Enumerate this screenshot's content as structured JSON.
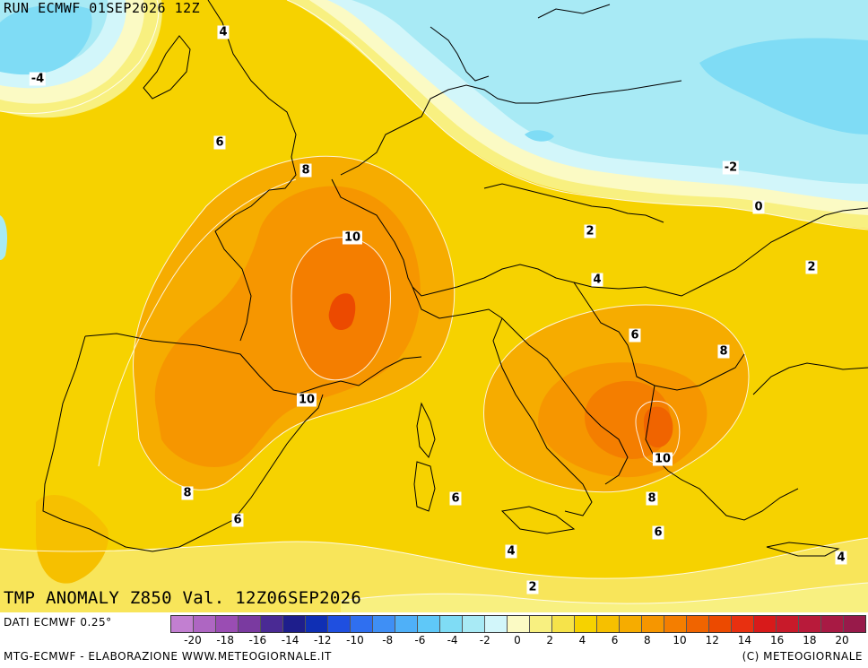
{
  "header": {
    "run_title": "RUN ECMWF 01SEP2026 12Z",
    "anomaly_title": "TMP ANOMALY Z850 Val. 12Z06SEP2026"
  },
  "contour_labels": [
    {
      "text": "4"
    },
    {
      "text": "-4"
    },
    {
      "text": "6"
    },
    {
      "text": "8"
    },
    {
      "text": "10"
    },
    {
      "text": "10"
    },
    {
      "text": "8"
    },
    {
      "text": "6"
    },
    {
      "text": "6"
    },
    {
      "text": "4"
    },
    {
      "text": "2"
    },
    {
      "text": "-2"
    },
    {
      "text": "0"
    },
    {
      "text": "2"
    },
    {
      "text": "2"
    },
    {
      "text": "4"
    },
    {
      "text": "6"
    },
    {
      "text": "8"
    },
    {
      "text": "10"
    },
    {
      "text": "8"
    },
    {
      "text": "6"
    },
    {
      "text": "4"
    }
  ],
  "footer": {
    "data_source": "DATI ECMWF 0.25°",
    "credit": "MTG-ECMWF - ELABORAZIONE WWW.METEOGIORNALE.IT",
    "copyright": "(C) METEOGIORNALE"
  },
  "legend": {
    "colors": [
      "#c27fd1",
      "#ae66c2",
      "#9a4db3",
      "#7a3aa0",
      "#4a2a94",
      "#1e1e8c",
      "#0f2fb4",
      "#1f4fe0",
      "#2f6ff0",
      "#3f8ff5",
      "#4fb0f8",
      "#5fc8f8",
      "#7fdcf5",
      "#a8eaf5",
      "#d2f6fa",
      "#fbfac4",
      "#f8f080",
      "#f6e34a",
      "#f6d200",
      "#f6c000",
      "#f6ac00",
      "#f69600",
      "#f47e00",
      "#f06400",
      "#ec4a00",
      "#e83010",
      "#d81a1a",
      "#c81a2a",
      "#b81a3a",
      "#a81a44",
      "#981a4a"
    ],
    "ticks": [
      "-20",
      "-18",
      "-16",
      "-14",
      "-12",
      "-10",
      "-8",
      "-6",
      "-4",
      "-2",
      "0",
      "2",
      "4",
      "6",
      "8",
      "10",
      "12",
      "14",
      "16",
      "18",
      "20"
    ]
  }
}
